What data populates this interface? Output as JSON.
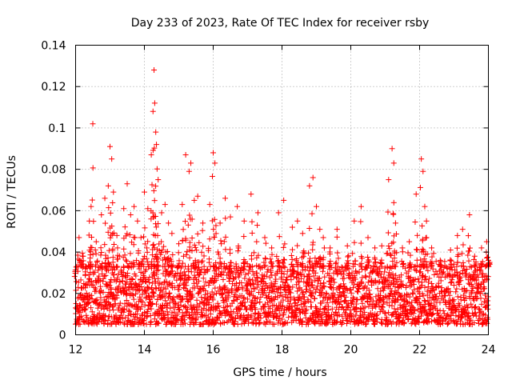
{
  "chart_data": {
    "type": "scatter",
    "title": "Day 233 of 2023, Rate Of TEC Index for receiver rsby",
    "xlabel": "GPS time / hours",
    "ylabel": "ROTI / TECUs",
    "xlim": [
      12,
      24
    ],
    "ylim": [
      0,
      0.14
    ],
    "xticks": [
      12,
      14,
      16,
      18,
      20,
      22,
      24
    ],
    "xtick_labels": [
      "12",
      "14",
      "16",
      "18",
      "20",
      "22",
      "24"
    ],
    "yticks": [
      0,
      0.02,
      0.04,
      0.06,
      0.08,
      0.1,
      0.12,
      0.14
    ],
    "ytick_labels": [
      "0",
      "0.02",
      "0.04",
      "0.06",
      "0.08",
      "0.1",
      "0.12",
      "0.14"
    ],
    "grid": true,
    "marker": "+",
    "series_color": "#ff0000",
    "series": [
      {
        "name": "ROTI",
        "points": [
          [
            12.0,
            0.013
          ],
          [
            12.1,
            0.047
          ],
          [
            12.2,
            0.038
          ],
          [
            12.3,
            0.024
          ],
          [
            12.4,
            0.055
          ],
          [
            12.45,
            0.062
          ],
          [
            12.5,
            0.102
          ],
          [
            12.6,
            0.045
          ],
          [
            12.75,
            0.058
          ],
          [
            12.85,
            0.066
          ],
          [
            12.95,
            0.072
          ],
          [
            13.0,
            0.091
          ],
          [
            13.05,
            0.085
          ],
          [
            13.1,
            0.069
          ],
          [
            13.2,
            0.048
          ],
          [
            13.4,
            0.061
          ],
          [
            13.5,
            0.073
          ],
          [
            13.6,
            0.058
          ],
          [
            13.7,
            0.062
          ],
          [
            13.8,
            0.055
          ],
          [
            13.9,
            0.047
          ],
          [
            14.0,
            0.069
          ],
          [
            14.1,
            0.061
          ],
          [
            14.2,
            0.087
          ],
          [
            14.25,
            0.108
          ],
          [
            14.28,
            0.128
          ],
          [
            14.3,
            0.112
          ],
          [
            14.33,
            0.098
          ],
          [
            14.35,
            0.092
          ],
          [
            14.4,
            0.075
          ],
          [
            14.5,
            0.059
          ],
          [
            14.6,
            0.063
          ],
          [
            14.7,
            0.054
          ],
          [
            14.8,
            0.049
          ],
          [
            15.0,
            0.044
          ],
          [
            15.1,
            0.063
          ],
          [
            15.2,
            0.087
          ],
          [
            15.3,
            0.079
          ],
          [
            15.35,
            0.083
          ],
          [
            15.45,
            0.065
          ],
          [
            15.55,
            0.067
          ],
          [
            15.7,
            0.054
          ],
          [
            15.9,
            0.063
          ],
          [
            16.0,
            0.088
          ],
          [
            16.05,
            0.083
          ],
          [
            16.2,
            0.054
          ],
          [
            16.35,
            0.066
          ],
          [
            16.5,
            0.057
          ],
          [
            16.7,
            0.062
          ],
          [
            16.9,
            0.055
          ],
          [
            17.1,
            0.068
          ],
          [
            17.3,
            0.059
          ],
          [
            17.5,
            0.047
          ],
          [
            17.7,
            0.042
          ],
          [
            17.9,
            0.059
          ],
          [
            18.05,
            0.065
          ],
          [
            18.3,
            0.052
          ],
          [
            18.45,
            0.055
          ],
          [
            18.6,
            0.049
          ],
          [
            18.8,
            0.072
          ],
          [
            18.9,
            0.076
          ],
          [
            19.0,
            0.062
          ],
          [
            19.1,
            0.051
          ],
          [
            19.2,
            0.047
          ],
          [
            19.4,
            0.042
          ],
          [
            19.6,
            0.051
          ],
          [
            19.9,
            0.043
          ],
          [
            20.1,
            0.055
          ],
          [
            20.3,
            0.062
          ],
          [
            20.5,
            0.047
          ],
          [
            20.7,
            0.042
          ],
          [
            20.9,
            0.043
          ],
          [
            21.1,
            0.075
          ],
          [
            21.2,
            0.09
          ],
          [
            21.25,
            0.083
          ],
          [
            21.3,
            0.054
          ],
          [
            21.5,
            0.042
          ],
          [
            21.7,
            0.045
          ],
          [
            21.9,
            0.068
          ],
          [
            22.05,
            0.085
          ],
          [
            22.1,
            0.079
          ],
          [
            22.15,
            0.062
          ],
          [
            22.2,
            0.055
          ],
          [
            22.35,
            0.042
          ],
          [
            22.6,
            0.036
          ],
          [
            22.9,
            0.041
          ],
          [
            23.1,
            0.048
          ],
          [
            23.25,
            0.051
          ],
          [
            23.45,
            0.058
          ],
          [
            23.6,
            0.038
          ],
          [
            23.8,
            0.042
          ],
          [
            23.95,
            0.045
          ],
          [
            24.0,
            0.036
          ]
        ],
        "baseline_band": {
          "description_hours": "dense cloud of points",
          "x_range": [
            12,
            24
          ],
          "y_min": 0.005,
          "y_max_typical": 0.033
        }
      }
    ]
  }
}
